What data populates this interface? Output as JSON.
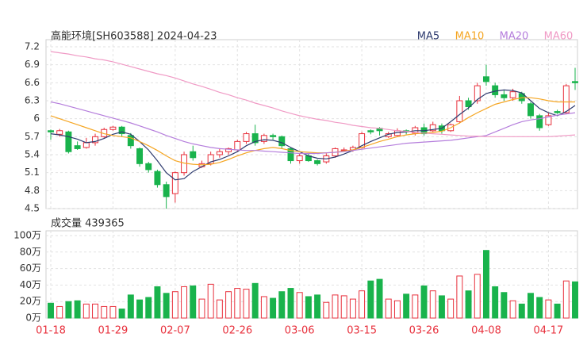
{
  "chart_data": [
    {
      "type": "candlestick",
      "title": "高能环境[SH603588] 2024-04-23",
      "categories": [
        "01-18",
        null,
        null,
        null,
        null,
        null,
        null,
        "01-29",
        null,
        null,
        null,
        null,
        null,
        null,
        "02-07",
        null,
        null,
        null,
        null,
        null,
        null,
        "02-26",
        null,
        null,
        null,
        null,
        null,
        null,
        "03-06",
        null,
        null,
        null,
        null,
        null,
        null,
        "03-15",
        null,
        null,
        null,
        null,
        null,
        null,
        "03-26",
        null,
        null,
        null,
        null,
        null,
        null,
        "04-08",
        null,
        null,
        null,
        null,
        null,
        null,
        "04-17",
        null,
        null,
        null
      ],
      "open": [
        5.8,
        5.74,
        5.78,
        5.55,
        5.52,
        5.6,
        5.7,
        5.82,
        5.86,
        5.72,
        5.5,
        5.25,
        5.12,
        4.9,
        4.75,
        5.1,
        5.45,
        5.2,
        5.25,
        5.4,
        5.45,
        5.48,
        5.62,
        5.75,
        5.62,
        5.72,
        5.7,
        5.5,
        5.3,
        5.38,
        5.3,
        5.28,
        5.38,
        5.48,
        5.48,
        5.52,
        5.8,
        5.84,
        5.7,
        5.72,
        5.8,
        5.76,
        5.85,
        5.8,
        5.88,
        5.8,
        5.95,
        6.3,
        6.3,
        6.7,
        6.55,
        6.4,
        6.35,
        6.42,
        6.25,
        6.05,
        5.9,
        6.12,
        6.1,
        6.62
      ],
      "high": [
        5.82,
        5.83,
        5.8,
        5.62,
        5.68,
        5.75,
        5.85,
        5.88,
        5.88,
        5.76,
        5.52,
        5.28,
        5.15,
        4.95,
        5.12,
        5.45,
        5.55,
        5.3,
        5.45,
        5.5,
        5.52,
        5.65,
        5.78,
        5.9,
        5.75,
        5.75,
        5.72,
        5.52,
        5.42,
        5.42,
        5.32,
        5.42,
        5.52,
        5.52,
        5.55,
        5.78,
        5.82,
        5.86,
        5.78,
        5.84,
        5.82,
        5.88,
        5.92,
        5.95,
        5.92,
        5.92,
        6.38,
        6.35,
        6.6,
        6.9,
        6.6,
        6.48,
        6.5,
        6.45,
        6.28,
        6.08,
        6.1,
        6.15,
        6.58,
        6.85
      ],
      "low": [
        5.65,
        5.7,
        5.42,
        5.48,
        5.5,
        5.55,
        5.68,
        5.8,
        5.7,
        5.5,
        5.2,
        5.1,
        4.85,
        4.5,
        4.6,
        5.05,
        5.3,
        5.18,
        5.22,
        5.35,
        5.4,
        5.45,
        5.58,
        5.55,
        5.58,
        5.65,
        5.5,
        5.25,
        5.25,
        5.28,
        5.22,
        5.25,
        5.35,
        5.45,
        5.45,
        5.5,
        5.74,
        5.72,
        5.68,
        5.7,
        5.74,
        5.72,
        5.72,
        5.78,
        5.75,
        5.78,
        5.92,
        6.15,
        6.25,
        6.55,
        6.35,
        6.3,
        6.3,
        6.25,
        6.0,
        5.8,
        5.88,
        6.08,
        6.08,
        6.48
      ],
      "close": [
        5.78,
        5.8,
        5.45,
        5.5,
        5.6,
        5.7,
        5.82,
        5.86,
        5.75,
        5.55,
        5.25,
        5.15,
        4.9,
        4.7,
        5.1,
        5.4,
        5.35,
        5.25,
        5.4,
        5.45,
        5.5,
        5.62,
        5.75,
        5.6,
        5.72,
        5.7,
        5.55,
        5.3,
        5.38,
        5.3,
        5.25,
        5.38,
        5.5,
        5.48,
        5.52,
        5.75,
        5.78,
        5.8,
        5.75,
        5.8,
        5.78,
        5.85,
        5.75,
        5.9,
        5.8,
        5.9,
        6.3,
        6.2,
        6.55,
        6.62,
        6.4,
        6.35,
        6.45,
        6.3,
        6.05,
        5.85,
        6.05,
        6.1,
        6.55,
        6.6
      ],
      "up_color": "#e8303c",
      "down_color": "#19b34c",
      "series": [
        {
          "name": "MA5",
          "color": "#2d3a6e",
          "values": [
            5.75,
            5.73,
            5.7,
            5.66,
            5.6,
            5.62,
            5.67,
            5.74,
            5.78,
            5.74,
            5.62,
            5.48,
            5.3,
            5.1,
            4.98,
            5.0,
            5.12,
            5.2,
            5.28,
            5.32,
            5.38,
            5.45,
            5.55,
            5.62,
            5.65,
            5.64,
            5.6,
            5.52,
            5.45,
            5.38,
            5.34,
            5.33,
            5.36,
            5.41,
            5.47,
            5.55,
            5.62,
            5.68,
            5.74,
            5.77,
            5.78,
            5.8,
            5.8,
            5.82,
            5.84,
            5.95,
            6.07,
            6.18,
            6.32,
            6.42,
            6.46,
            6.48,
            6.47,
            6.43,
            6.3,
            6.17,
            6.1,
            6.05,
            6.12,
            6.22
          ]
        },
        {
          "name": "MA10",
          "color": "#f5a623",
          "values": [
            6.05,
            6.0,
            5.95,
            5.9,
            5.85,
            5.8,
            5.75,
            5.72,
            5.7,
            5.68,
            5.62,
            5.55,
            5.47,
            5.38,
            5.3,
            5.26,
            5.24,
            5.23,
            5.24,
            5.27,
            5.32,
            5.38,
            5.43,
            5.47,
            5.5,
            5.52,
            5.5,
            5.47,
            5.45,
            5.44,
            5.43,
            5.43,
            5.44,
            5.46,
            5.48,
            5.52,
            5.57,
            5.62,
            5.66,
            5.7,
            5.73,
            5.75,
            5.76,
            5.77,
            5.79,
            5.85,
            5.93,
            6.02,
            6.1,
            6.17,
            6.24,
            6.28,
            6.32,
            6.35,
            6.35,
            6.33,
            6.3,
            6.28,
            6.28,
            6.28
          ]
        },
        {
          "name": "MA20",
          "color": "#b57edc",
          "values": [
            6.28,
            6.25,
            6.21,
            6.17,
            6.13,
            6.09,
            6.05,
            6.01,
            5.97,
            5.93,
            5.88,
            5.83,
            5.78,
            5.72,
            5.67,
            5.62,
            5.58,
            5.55,
            5.52,
            5.5,
            5.49,
            5.48,
            5.47,
            5.47,
            5.46,
            5.45,
            5.44,
            5.43,
            5.42,
            5.42,
            5.42,
            5.43,
            5.44,
            5.45,
            5.47,
            5.49,
            5.51,
            5.53,
            5.55,
            5.57,
            5.59,
            5.6,
            5.61,
            5.62,
            5.63,
            5.64,
            5.66,
            5.68,
            5.7,
            5.72,
            5.78,
            5.84,
            5.9,
            5.95,
            5.98,
            6.0,
            6.03,
            6.06,
            6.08,
            6.1
          ]
        },
        {
          "name": "MA60",
          "color": "#f09ac5",
          "values": [
            7.12,
            7.1,
            7.08,
            7.05,
            7.03,
            7.0,
            6.98,
            6.95,
            6.91,
            6.87,
            6.83,
            6.79,
            6.75,
            6.72,
            6.68,
            6.63,
            6.58,
            6.54,
            6.49,
            6.44,
            6.4,
            6.35,
            6.31,
            6.26,
            6.22,
            6.18,
            6.13,
            6.09,
            6.05,
            6.02,
            5.99,
            5.97,
            5.94,
            5.92,
            5.89,
            5.87,
            5.85,
            5.84,
            5.82,
            5.8,
            5.79,
            5.77,
            5.76,
            5.75,
            5.74,
            5.73,
            5.72,
            5.71,
            5.71,
            5.7,
            5.7,
            5.7,
            5.7,
            5.7,
            5.7,
            5.7,
            5.7,
            5.71,
            5.72,
            5.73
          ]
        }
      ],
      "ylim": [
        4.5,
        7.2
      ],
      "yticks": [
        7.2,
        6.9,
        6.6,
        6.3,
        6,
        5.7,
        5.4,
        5.1,
        4.8,
        4.5
      ],
      "grid": true
    },
    {
      "type": "bar",
      "title": "成交量 439365",
      "values": [
        18,
        14,
        20,
        21,
        17,
        17,
        14,
        14,
        11,
        28,
        22,
        25,
        38,
        30,
        32,
        38,
        39,
        23,
        41,
        22,
        32,
        36,
        35,
        42,
        26,
        24,
        32,
        36,
        31,
        26,
        28,
        19,
        28,
        27,
        23,
        33,
        45,
        47,
        23,
        21,
        29,
        28,
        39,
        33,
        27,
        23,
        51,
        33,
        53,
        82,
        38,
        31,
        21,
        17,
        30,
        25,
        22,
        17,
        45,
        43.94
      ],
      "ylim": [
        0,
        100
      ],
      "yticks": [
        {
          "value": 100,
          "label": "100万"
        },
        {
          "value": 80,
          "label": "80万"
        },
        {
          "value": 60,
          "label": "60万"
        },
        {
          "value": 40,
          "label": "40万"
        },
        {
          "value": 20,
          "label": "20万"
        },
        {
          "value": 0,
          "label": "0万"
        }
      ],
      "grid": true
    }
  ]
}
